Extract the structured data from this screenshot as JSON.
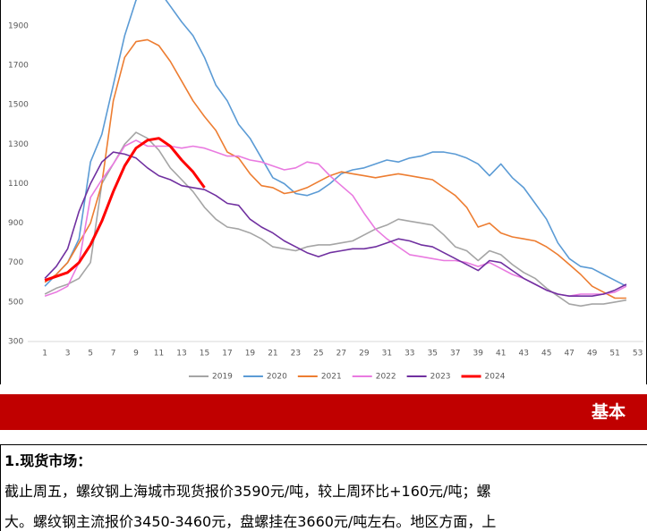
{
  "chart_data": {
    "type": "line",
    "x": [
      1,
      2,
      3,
      4,
      5,
      6,
      7,
      8,
      9,
      10,
      11,
      12,
      13,
      14,
      15,
      16,
      17,
      18,
      19,
      20,
      21,
      22,
      23,
      24,
      25,
      26,
      27,
      28,
      29,
      30,
      31,
      32,
      33,
      34,
      35,
      36,
      37,
      38,
      39,
      40,
      41,
      42,
      43,
      44,
      45,
      46,
      47,
      48,
      49,
      50,
      51,
      52
    ],
    "xlim": [
      -0.5,
      53.5
    ],
    "xticks": [
      1,
      3,
      5,
      7,
      9,
      11,
      13,
      15,
      17,
      19,
      21,
      23,
      25,
      27,
      29,
      31,
      33,
      35,
      37,
      39,
      41,
      43,
      45,
      47,
      49,
      51,
      53
    ],
    "ylim": [
      300,
      2031
    ],
    "yticks": [
      300,
      500,
      700,
      900,
      1100,
      1300,
      1500,
      1700,
      1900
    ],
    "legend": "bottom",
    "series": [
      {
        "name": "2019",
        "color": "#a5a5a5",
        "values": [
          540,
          570,
          590,
          620,
          700,
          1100,
          1200,
          1300,
          1360,
          1330,
          1270,
          1180,
          1120,
          1060,
          980,
          920,
          880,
          870,
          850,
          820,
          780,
          770,
          760,
          780,
          790,
          790,
          800,
          810,
          840,
          870,
          890,
          920,
          910,
          900,
          890,
          840,
          780,
          760,
          710,
          760,
          740,
          690,
          650,
          620,
          570,
          530,
          490,
          480,
          490,
          490,
          500,
          510
        ]
      },
      {
        "name": "2020",
        "color": "#5b9bd5",
        "values": [
          580,
          640,
          700,
          820,
          1210,
          1350,
          1600,
          1850,
          2030,
          2100,
          2080,
          2000,
          1920,
          1850,
          1740,
          1600,
          1520,
          1400,
          1330,
          1230,
          1130,
          1100,
          1050,
          1040,
          1060,
          1100,
          1150,
          1170,
          1180,
          1200,
          1220,
          1210,
          1230,
          1240,
          1260,
          1260,
          1250,
          1230,
          1200,
          1140,
          1200,
          1130,
          1080,
          1000,
          920,
          800,
          720,
          680,
          670,
          640,
          610,
          580
        ]
      },
      {
        "name": "2021",
        "color": "#ed7d31",
        "values": [
          600,
          640,
          700,
          800,
          900,
          1100,
          1520,
          1740,
          1820,
          1830,
          1800,
          1720,
          1620,
          1520,
          1440,
          1370,
          1260,
          1230,
          1150,
          1090,
          1080,
          1050,
          1060,
          1080,
          1110,
          1140,
          1160,
          1150,
          1140,
          1130,
          1140,
          1150,
          1140,
          1130,
          1120,
          1080,
          1040,
          980,
          880,
          900,
          850,
          830,
          820,
          810,
          780,
          740,
          690,
          640,
          580,
          550,
          520,
          520
        ]
      },
      {
        "name": "2022",
        "color": "#e97ae0",
        "values": [
          530,
          550,
          580,
          700,
          1030,
          1120,
          1200,
          1290,
          1320,
          1290,
          1290,
          1290,
          1280,
          1290,
          1280,
          1260,
          1240,
          1240,
          1220,
          1210,
          1190,
          1170,
          1180,
          1210,
          1200,
          1140,
          1090,
          1040,
          950,
          870,
          820,
          780,
          740,
          730,
          720,
          710,
          710,
          700,
          680,
          700,
          670,
          640,
          620,
          590,
          560,
          540,
          530,
          540,
          540,
          540,
          550,
          580
        ]
      },
      {
        "name": "2023",
        "color": "#7030a0",
        "values": [
          620,
          680,
          770,
          960,
          1100,
          1210,
          1260,
          1250,
          1230,
          1180,
          1140,
          1120,
          1090,
          1080,
          1070,
          1040,
          1000,
          990,
          920,
          880,
          850,
          810,
          780,
          750,
          730,
          750,
          760,
          770,
          770,
          780,
          800,
          820,
          810,
          790,
          780,
          750,
          720,
          690,
          660,
          710,
          700,
          660,
          620,
          590,
          560,
          540,
          530,
          530,
          530,
          540,
          560,
          590
        ]
      },
      {
        "name": "2024",
        "color": "#ff0000",
        "values": [
          610,
          630,
          650,
          700,
          790,
          910,
          1060,
          1190,
          1280,
          1320,
          1330,
          1290,
          1220,
          1160,
          1080,
          null,
          null,
          null,
          null,
          null,
          null,
          null,
          null,
          null,
          null,
          null,
          null,
          null,
          null,
          null,
          null,
          null,
          null,
          null,
          null,
          null,
          null,
          null,
          null,
          null,
          null,
          null,
          null,
          null,
          null,
          null,
          null,
          null,
          null,
          null,
          null,
          null
        ]
      }
    ]
  },
  "banner": {
    "title": "基本"
  },
  "section": {
    "heading": "1.现货市场：",
    "lines": [
      "截止周五，螺纹钢上海城市现货报价3590元/吨，较上周环比+160元/吨；螺",
      "大。螺纹钢主流报价3450-3460元，盘螺挂在3660元/吨左右。地区方面，上"
    ]
  }
}
